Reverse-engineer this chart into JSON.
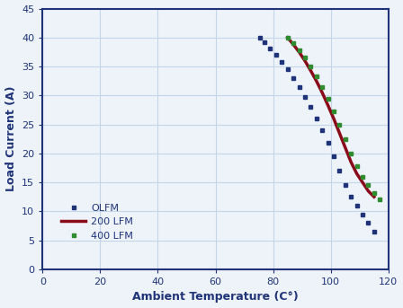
{
  "title": "",
  "xlabel": "Ambient Temperature (C°)",
  "ylabel": "Load Current (A)",
  "xlim": [
    0,
    120
  ],
  "ylim": [
    0,
    45
  ],
  "xticks": [
    0,
    20,
    40,
    60,
    80,
    100,
    120
  ],
  "yticks": [
    0,
    5,
    10,
    15,
    20,
    25,
    30,
    35,
    40,
    45
  ],
  "legend_labels": [
    "OLFM",
    "200 LFM",
    "400 LFM"
  ],
  "OLFM": {
    "color": "#1f3478",
    "linewidth": 2.0,
    "x": [
      75.5,
      77,
      79,
      81,
      83,
      85,
      87,
      89,
      91,
      93,
      95,
      97,
      99,
      101,
      103,
      105,
      107,
      109,
      111,
      113,
      115
    ],
    "y": [
      40,
      39.2,
      38.1,
      37.0,
      35.8,
      34.5,
      33.0,
      31.5,
      29.8,
      28.0,
      26.0,
      24.0,
      21.8,
      19.5,
      17.0,
      14.5,
      12.5,
      11.0,
      9.5,
      8.0,
      6.5
    ]
  },
  "LFM200": {
    "color": "#8b0a1a",
    "linewidth": 2.5,
    "x": [
      85,
      87,
      89,
      91,
      93,
      95,
      97,
      99,
      101,
      103,
      105,
      107,
      109,
      111,
      113,
      115
    ],
    "y": [
      40,
      38.8,
      37.5,
      36.0,
      34.3,
      32.5,
      30.5,
      28.3,
      26.0,
      23.5,
      21.0,
      18.5,
      16.5,
      15.0,
      13.5,
      12.5
    ]
  },
  "LFM400": {
    "color": "#2e8b2e",
    "linewidth": 2.0,
    "x": [
      85,
      87,
      89,
      91,
      93,
      95,
      97,
      99,
      101,
      103,
      105,
      107,
      109,
      111,
      113,
      115,
      117
    ],
    "y": [
      40,
      39.0,
      37.8,
      36.5,
      35.0,
      33.3,
      31.5,
      29.5,
      27.3,
      25.0,
      22.5,
      20.0,
      17.8,
      16.0,
      14.5,
      13.2,
      12.0
    ]
  },
  "grid_color": "#c5d5e8",
  "bg_color": "#eef3fa",
  "plot_bg_color": "#eef3fa",
  "border_color": "#1f3478",
  "label_color": "#1f3478",
  "tick_color": "#1f3478",
  "figsize": [
    4.48,
    3.43
  ],
  "dpi": 100
}
